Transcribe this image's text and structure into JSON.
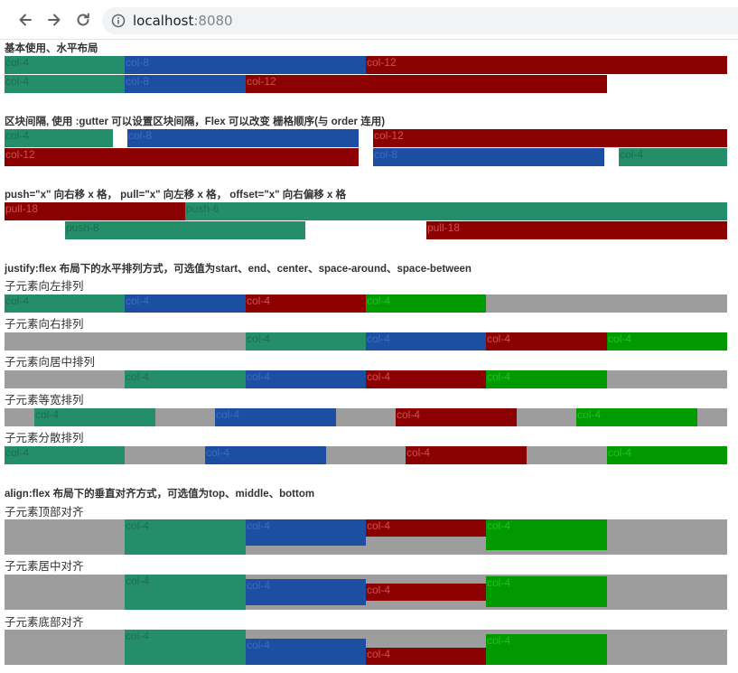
{
  "browser": {
    "url_host": "localhost",
    "url_port": ":8080"
  },
  "colors": {
    "green_dark": "#248e6b",
    "blue": "#1c4ea1",
    "red": "#8b0000",
    "green": "#009a00",
    "gray": "#9d9d9d"
  },
  "icons": [
    "back-arrow-icon",
    "forward-arrow-icon",
    "reload-icon",
    "info-icon"
  ],
  "sections": {
    "basic": {
      "title": "基本使用、水平布局",
      "row1": [
        "col-4",
        "col-8",
        "col-12"
      ],
      "row2": [
        "col-4",
        "col-8",
        "col-12"
      ]
    },
    "gutter": {
      "title": "区块间隔, 使用 :gutter 可以设置区块间隔，Flex 可以改变 栅格顺序(与 order 连用)",
      "row1": [
        "col-4",
        "col-8",
        "col-12"
      ],
      "row2": [
        "col-12",
        "col-8",
        "col-4"
      ]
    },
    "push": {
      "title": "push=\"x\" 向右移 x 格， pull=\"x\" 向左移 x 格， offset=\"x\" 向右偏移 x 格",
      "row1": [
        "pull-18",
        "push-6"
      ],
      "row2": [
        "push-8",
        "pull-18"
      ]
    },
    "justify": {
      "title": "justify:flex 布局下的水平排列方式，可选值为start、end、center、space-around、space-between",
      "start_label": "子元素向左排列",
      "end_label": "子元素向右排列",
      "center_label": "子元素向居中排列",
      "around_label": "子元素等宽排列",
      "between_label": "子元素分散排列",
      "cols": [
        "col-4",
        "col-4",
        "col-4",
        "col-4"
      ]
    },
    "align": {
      "title": "align:flex 布局下的垂直对齐方式，可选值为top、middle、bottom",
      "top_label": "子元素顶部对齐",
      "middle_label": "子元素居中对齐",
      "bottom_label": "子元素底部对齐",
      "cols": [
        "col-4",
        "col-4",
        "col-4",
        "col-4"
      ]
    }
  }
}
